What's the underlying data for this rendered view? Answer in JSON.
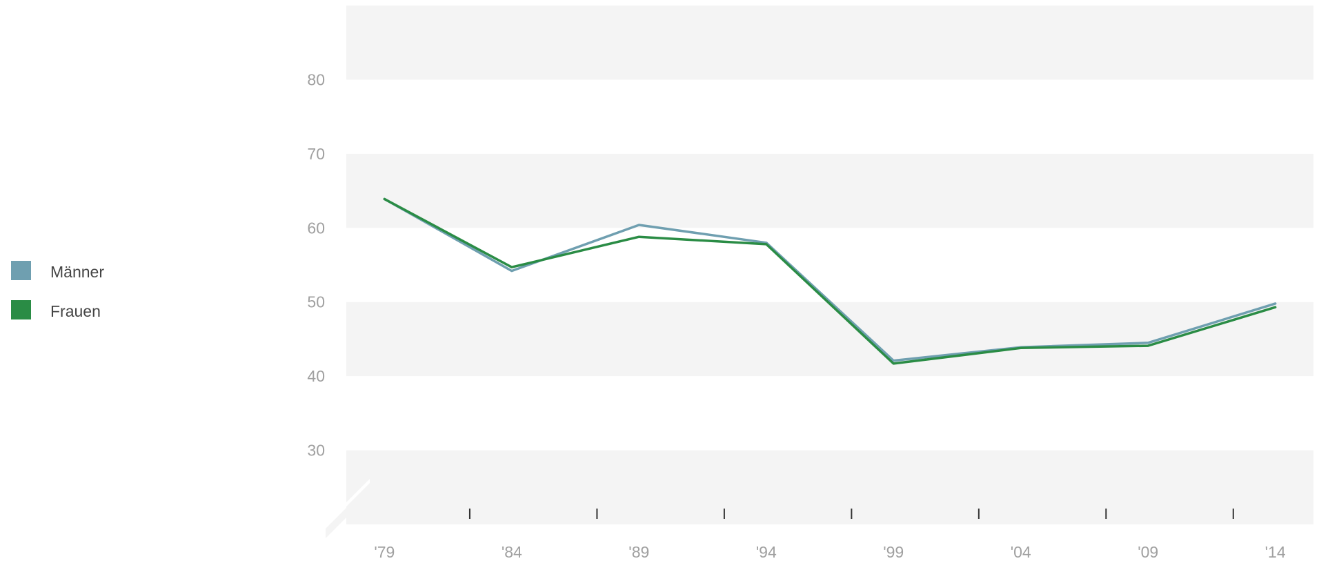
{
  "chart_data": {
    "type": "line",
    "title": "",
    "xlabel": "",
    "ylabel": "",
    "x": [
      1979,
      1984,
      1989,
      1994,
      1999,
      2004,
      2009,
      2014
    ],
    "x_tick_labels": [
      "'79",
      "'84",
      "'89",
      "'94",
      "'99",
      "'04",
      "'09",
      "'14"
    ],
    "y_ticks": [
      30,
      40,
      50,
      60,
      70,
      80
    ],
    "ylim": [
      20,
      90
    ],
    "xlim": [
      1977.5,
      2015.5
    ],
    "axis_break": true,
    "grid": "alternating horizontal bands",
    "legend_position": "left",
    "series": [
      {
        "name": "Männer",
        "color": "#6f9fb0",
        "values": [
          63.9,
          54.2,
          60.4,
          58.0,
          42.1,
          43.9,
          44.5,
          49.8
        ]
      },
      {
        "name": "Frauen",
        "color": "#2a8c45",
        "values": [
          63.9,
          54.7,
          58.8,
          57.8,
          41.7,
          43.8,
          44.1,
          49.3
        ]
      }
    ]
  }
}
